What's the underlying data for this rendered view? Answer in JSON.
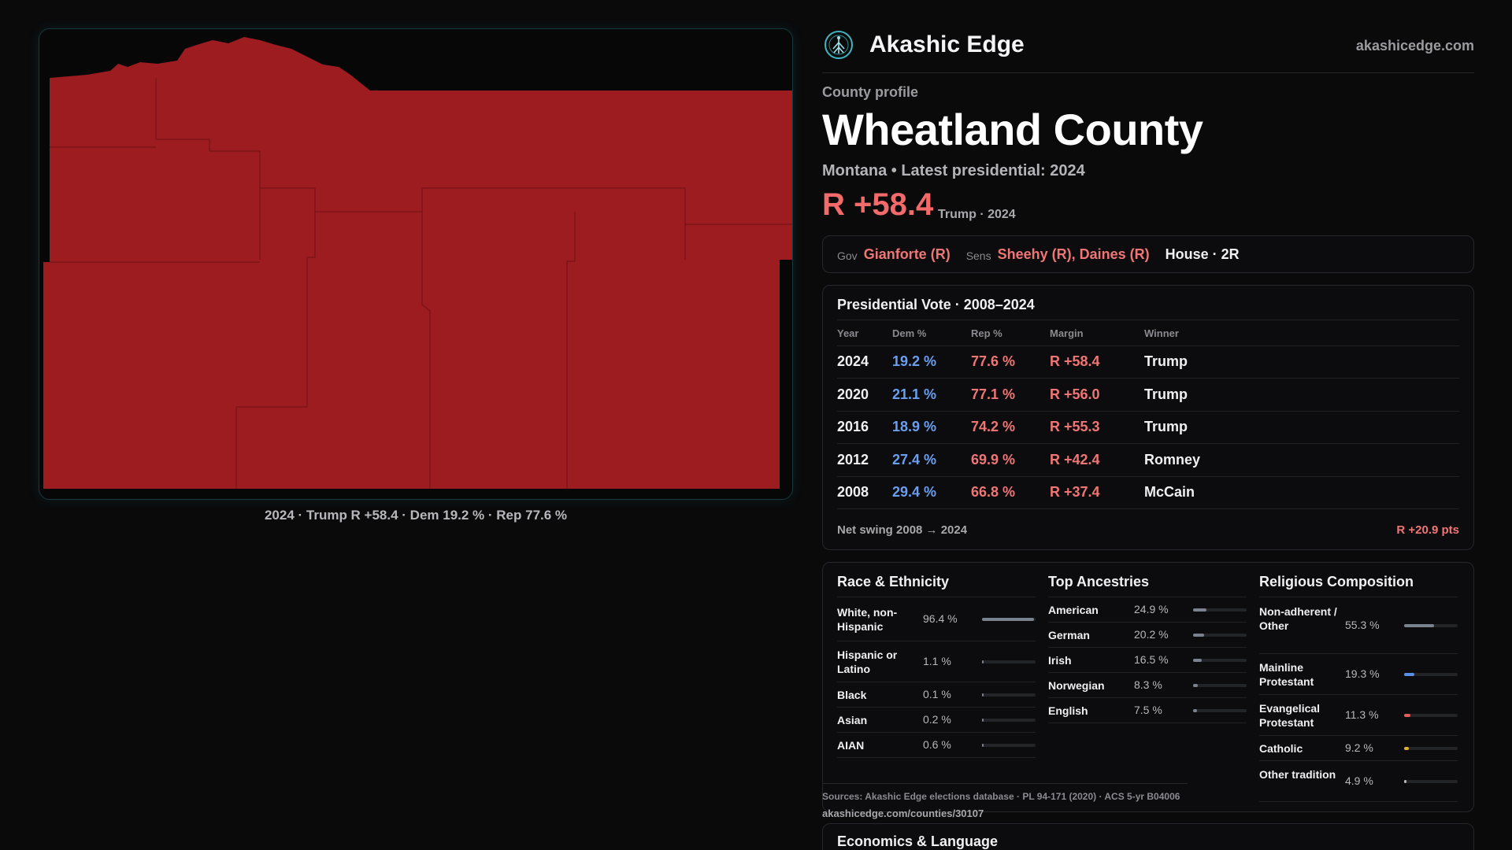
{
  "header": {
    "brand": "Akashic Edge",
    "domain": "akashicedge.com",
    "logo_icon": "tree-of-life-icon"
  },
  "profile": {
    "eyebrow": "County profile",
    "title": "Wheatland County",
    "subtitle": "Montana • Latest presidential: 2024",
    "margin": "R +58.4",
    "margin_note": "Trump · 2024"
  },
  "officials": {
    "gov_label": "Gov",
    "gov": "Gianforte (R)",
    "sens_label": "Sens",
    "sens": "Sheehy (R), Daines (R)",
    "house": "House · 2R"
  },
  "map": {
    "caption": "2024 · Trump R +58.4 · Dem 19.2 % · Rep 77.6 %",
    "fill_color": "#9c1c20"
  },
  "presidential": {
    "title": "Presidential Vote · 2008–2024",
    "columns": [
      "Year",
      "Dem %",
      "Rep %",
      "Margin",
      "Winner"
    ],
    "rows": [
      {
        "year": "2024",
        "dem": "19.2 %",
        "rep": "77.6 %",
        "margin": "R +58.4",
        "winner": "Trump"
      },
      {
        "year": "2020",
        "dem": "21.1 %",
        "rep": "77.1 %",
        "margin": "R +56.0",
        "winner": "Trump"
      },
      {
        "year": "2016",
        "dem": "18.9 %",
        "rep": "74.2 %",
        "margin": "R +55.3",
        "winner": "Trump"
      },
      {
        "year": "2012",
        "dem": "27.4 %",
        "rep": "69.9 %",
        "margin": "R +42.4",
        "winner": "Romney"
      },
      {
        "year": "2008",
        "dem": "29.4 %",
        "rep": "66.8 %",
        "margin": "R +37.4",
        "winner": "McCain"
      }
    ],
    "swing_label": "Net swing 2008 → 2024",
    "swing_value": "R +20.9 pts"
  },
  "race": {
    "title": "Race & Ethnicity",
    "items": [
      {
        "label": "White, non-Hispanic",
        "pct": "96.4 %",
        "value": 96.4
      },
      {
        "label": "Hispanic or Latino",
        "pct": "1.1 %",
        "value": 1.1
      },
      {
        "label": "Black",
        "pct": "0.1 %",
        "value": 0.1
      },
      {
        "label": "Asian",
        "pct": "0.2 %",
        "value": 0.2
      },
      {
        "label": "AIAN",
        "pct": "0.6 %",
        "value": 0.6
      }
    ]
  },
  "ancestry": {
    "title": "Top Ancestries",
    "items": [
      {
        "label": "American",
        "pct": "24.9 %",
        "value": 24.9
      },
      {
        "label": "German",
        "pct": "20.2 %",
        "value": 20.2
      },
      {
        "label": "Irish",
        "pct": "16.5 %",
        "value": 16.5
      },
      {
        "label": "Norwegian",
        "pct": "8.3 %",
        "value": 8.3
      },
      {
        "label": "English",
        "pct": "7.5 %",
        "value": 7.5
      }
    ]
  },
  "religion": {
    "title": "Religious Composition",
    "items": [
      {
        "label": "Non-adherent / Other",
        "pct": "55.3 %",
        "value": 55.3,
        "color": "#7a8290"
      },
      {
        "label": "Mainline Protestant",
        "pct": "19.3 %",
        "value": 19.3,
        "color": "#5a8fe6"
      },
      {
        "label": "Evangelical Protestant",
        "pct": "11.3 %",
        "value": 11.3,
        "color": "#e55a5a"
      },
      {
        "label": "Catholic",
        "pct": "9.2 %",
        "value": 9.2,
        "color": "#e0b030"
      },
      {
        "label": "Other tradition",
        "pct": "4.9 %",
        "value": 4.9,
        "color": "#b8b8bc"
      }
    ]
  },
  "sources": {
    "text": "Sources: Akashic Edge elections database · PL 94-171 (2020) · ACS 5-yr B04006",
    "url": "akashicedge.com/counties/30107"
  },
  "economics": {
    "title": "Economics & Language"
  }
}
